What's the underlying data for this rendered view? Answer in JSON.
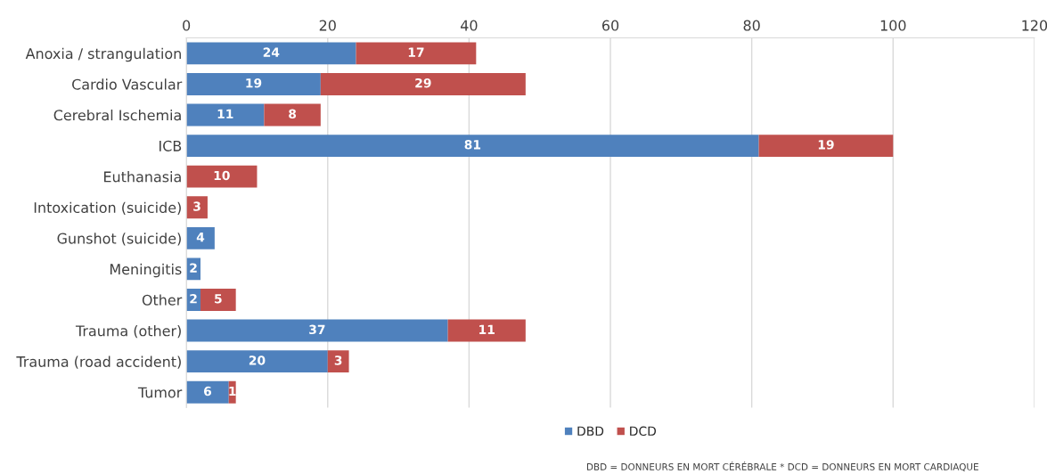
{
  "chart_data": {
    "type": "bar",
    "orientation": "horizontal",
    "stacked": true,
    "categories": [
      "Anoxia / strangulation",
      "Cardio Vascular",
      "Cerebral Ischemia",
      "ICB",
      "Euthanasia",
      "Intoxication (suicide)",
      "Gunshot (suicide)",
      "Meningitis",
      "Other",
      "Trauma (other)",
      "Trauma (road accident)",
      "Tumor"
    ],
    "series": [
      {
        "name": "DBD",
        "color": "#4f81bd",
        "values": [
          24,
          19,
          11,
          81,
          null,
          null,
          4,
          2,
          2,
          37,
          20,
          6
        ]
      },
      {
        "name": "DCD",
        "color": "#c0504d",
        "values": [
          17,
          29,
          8,
          19,
          10,
          3,
          null,
          null,
          5,
          11,
          3,
          1
        ]
      }
    ],
    "xlim": [
      0,
      120
    ],
    "xticks": [
      0,
      20,
      40,
      60,
      80,
      100,
      120
    ],
    "grid": "x",
    "legend": "bottom",
    "data_labels": true,
    "annotations": [
      "DBD = DONNEURS EN MORT CÉRÉBRALE * DCD = DONNEURS EN MORT CARDIAQUE"
    ]
  }
}
